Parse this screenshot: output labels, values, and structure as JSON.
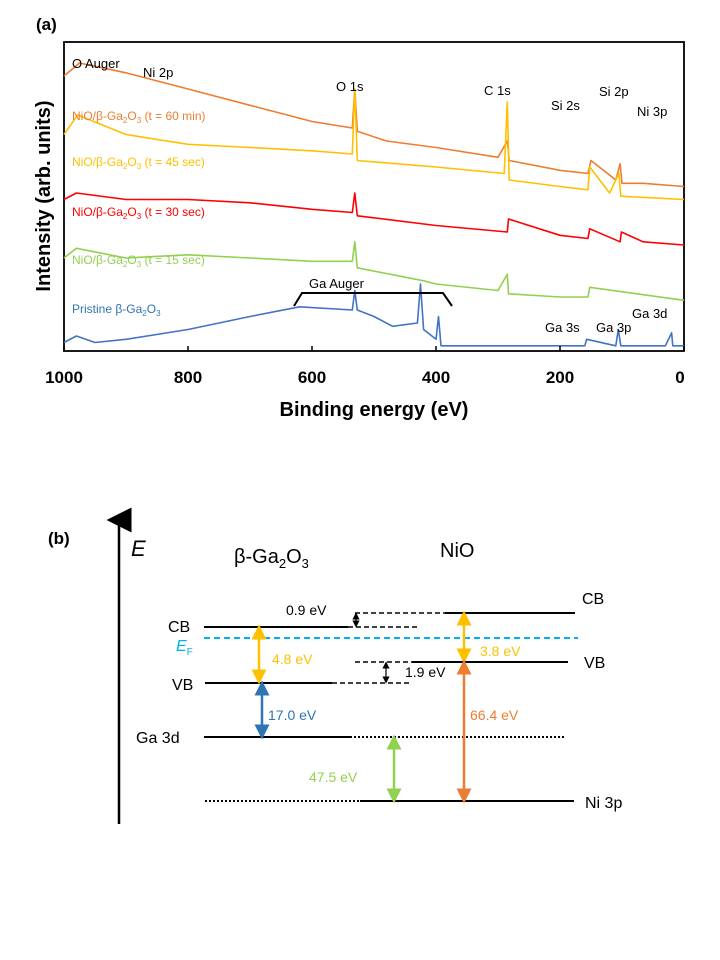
{
  "panel_a": {
    "label": "(a)",
    "xlabel": "Binding energy (eV)",
    "ylabel": "Intensity (arb. units)",
    "x_ticks": [
      "1000",
      "800",
      "600",
      "400",
      "200",
      "0"
    ],
    "peak_labels": {
      "o_auger": "O Auger",
      "ni2p": "Ni 2p",
      "o1s": "O 1s",
      "c1s": "C 1s",
      "si2s": "Si 2s",
      "si2p": "Si 2p",
      "ni3p": "Ni 3p",
      "ga_auger": "Ga Auger",
      "ga3s": "Ga 3s",
      "ga3p": "Ga 3p",
      "ga3d": "Ga 3d"
    },
    "series_labels": {
      "s60min": {
        "prefix": "NiO/β-Ga",
        "sub1": "2",
        "mid": "O",
        "sub2": "3",
        "suffix": " (t = 60 min)"
      },
      "s45sec": {
        "prefix": "NiO/β-Ga",
        "sub1": "2",
        "mid": "O",
        "sub2": "3",
        "suffix": " (t = 45 sec)"
      },
      "s30sec": {
        "prefix": "NiO/β-Ga",
        "sub1": "2",
        "mid": "O",
        "sub2": "3",
        "suffix": " (t = 30 sec)"
      },
      "s15sec": {
        "prefix": "NiO/β-Ga",
        "sub1": "2",
        "mid": "O",
        "sub2": "3",
        "suffix": " (t = 15 sec)"
      },
      "pristine": {
        "prefix": "Pristine β-Ga",
        "sub1": "2",
        "mid": "O",
        "sub2": "3",
        "suffix": ""
      }
    }
  },
  "panel_b": {
    "label": "(b)",
    "axis_label": "E",
    "ga2o3_title": {
      "prefix": "β-Ga",
      "sub1": "2",
      "mid": "O",
      "sub2": "3"
    },
    "nio_title": "NiO",
    "cb_left": "CB",
    "ef": {
      "main": "E",
      "sub": "F"
    },
    "vb_left": "VB",
    "ga3d": "Ga 3d",
    "cb_right": "CB",
    "vb_right": "VB",
    "ni3p": "Ni 3p",
    "cb_offset": "0.9 eV",
    "vb_offset": "1.9 eV",
    "ga2o3_ef_vb": "4.8 eV",
    "nio_cb_ef": "3.8 eV",
    "ga3d_vb": "17.0 eV",
    "ni3p_vb": "66.4 eV",
    "ni3p_ga3d": "47.5 eV"
  },
  "chart_data": [
    {
      "type": "line",
      "title": "(a)",
      "xlabel": "Binding energy (eV)",
      "ylabel": "Intensity (arb. units)",
      "xlim": [
        1000,
        0
      ],
      "x_reversed": true,
      "y_ticks_shown": false,
      "series": [
        {
          "name": "NiO/β-Ga2O3 (t = 60 min)",
          "color": "#ed7d31",
          "x": [
            1000,
            975,
            900,
            800,
            700,
            600,
            535,
            531,
            527,
            480,
            400,
            300,
            285,
            282,
            200,
            155,
            150,
            110,
            103,
            100,
            66,
            0
          ],
          "y": [
            84,
            88,
            85,
            80,
            75,
            70,
            68,
            80,
            67,
            64,
            62,
            59,
            64,
            58,
            55,
            54,
            58,
            52,
            57,
            51,
            51,
            50
          ]
        },
        {
          "name": "NiO/β-Ga2O3 (t = 45 sec)",
          "color": "#ffc000",
          "x": [
            1000,
            978,
            900,
            800,
            700,
            600,
            535,
            531,
            527,
            400,
            290,
            285,
            282,
            200,
            155,
            152,
            120,
            105,
            102,
            0
          ],
          "y": [
            66,
            72,
            66,
            63,
            62,
            61,
            60,
            80,
            58,
            56,
            54,
            76,
            52,
            50,
            49,
            56,
            48,
            54,
            47,
            46
          ]
        },
        {
          "name": "NiO/β-Ga2O3 (t = 30 sec)",
          "color": "#ff0000",
          "x": [
            1000,
            980,
            900,
            800,
            700,
            600,
            535,
            531,
            527,
            400,
            285,
            283,
            200,
            155,
            152,
            103,
            101,
            66,
            0
          ],
          "y": [
            46,
            48,
            46,
            46,
            45,
            43,
            42,
            48,
            41,
            38,
            36,
            40,
            35,
            34,
            37,
            33,
            36,
            33,
            32
          ]
        },
        {
          "name": "NiO/β-Ga2O3 (t = 15 sec)",
          "color": "#92d050",
          "x": [
            1000,
            980,
            900,
            800,
            700,
            600,
            535,
            531,
            527,
            420,
            400,
            300,
            285,
            283,
            200,
            155,
            152,
            0
          ],
          "y": [
            28,
            31,
            28,
            29,
            28,
            27,
            27,
            33,
            25,
            21,
            20,
            18,
            23,
            17,
            16,
            16,
            19,
            15
          ]
        },
        {
          "name": "Pristine β-Ga2O3",
          "color": "#4472c4",
          "x": [
            1000,
            980,
            950,
            900,
            800,
            700,
            620,
            535,
            531,
            527,
            500,
            470,
            430,
            425,
            420,
            400,
            396,
            392,
            300,
            200,
            160,
            157,
            110,
            106,
            102,
            30,
            20,
            18,
            0
          ],
          "y": [
            2,
            4,
            2,
            3,
            6,
            10,
            13,
            12,
            18,
            12,
            10,
            7,
            8,
            20,
            6,
            3,
            10,
            1,
            1,
            1,
            1,
            3,
            1,
            6,
            1,
            1,
            5,
            1,
            1
          ]
        }
      ],
      "annotations": [
        "O Auger",
        "Ni 2p",
        "O 1s",
        "C 1s",
        "Si 2s",
        "Si 2p",
        "Ni 3p",
        "Ga Auger",
        "Ga 3s",
        "Ga 3p",
        "Ga 3d"
      ]
    },
    {
      "type": "diagram",
      "title": "(b)",
      "materials": [
        "β-Ga2O3",
        "NiO"
      ],
      "levels": [
        "CB",
        "EF",
        "VB",
        "Ga 3d",
        "Ni 3p"
      ],
      "energy_differences_eV": {
        "conduction_band_offset": 0.9,
        "valence_band_offset": 1.9,
        "Ga2O3_EF_minus_VB": 4.8,
        "NiO_CB_minus_EF": 3.8,
        "Ga2O3_VB_minus_Ga3d": 17.0,
        "NiO_VB_minus_Ni3p": 66.4,
        "Ga3d_minus_Ni3p": 47.5
      }
    }
  ],
  "colors": {
    "orange": "#ed7d31",
    "yellow": "#ffc000",
    "red": "#ff0000",
    "green": "#92d050",
    "blue": "#4472c4",
    "dark_blue": "#2e75b6",
    "fermi": "#00b0f0"
  }
}
